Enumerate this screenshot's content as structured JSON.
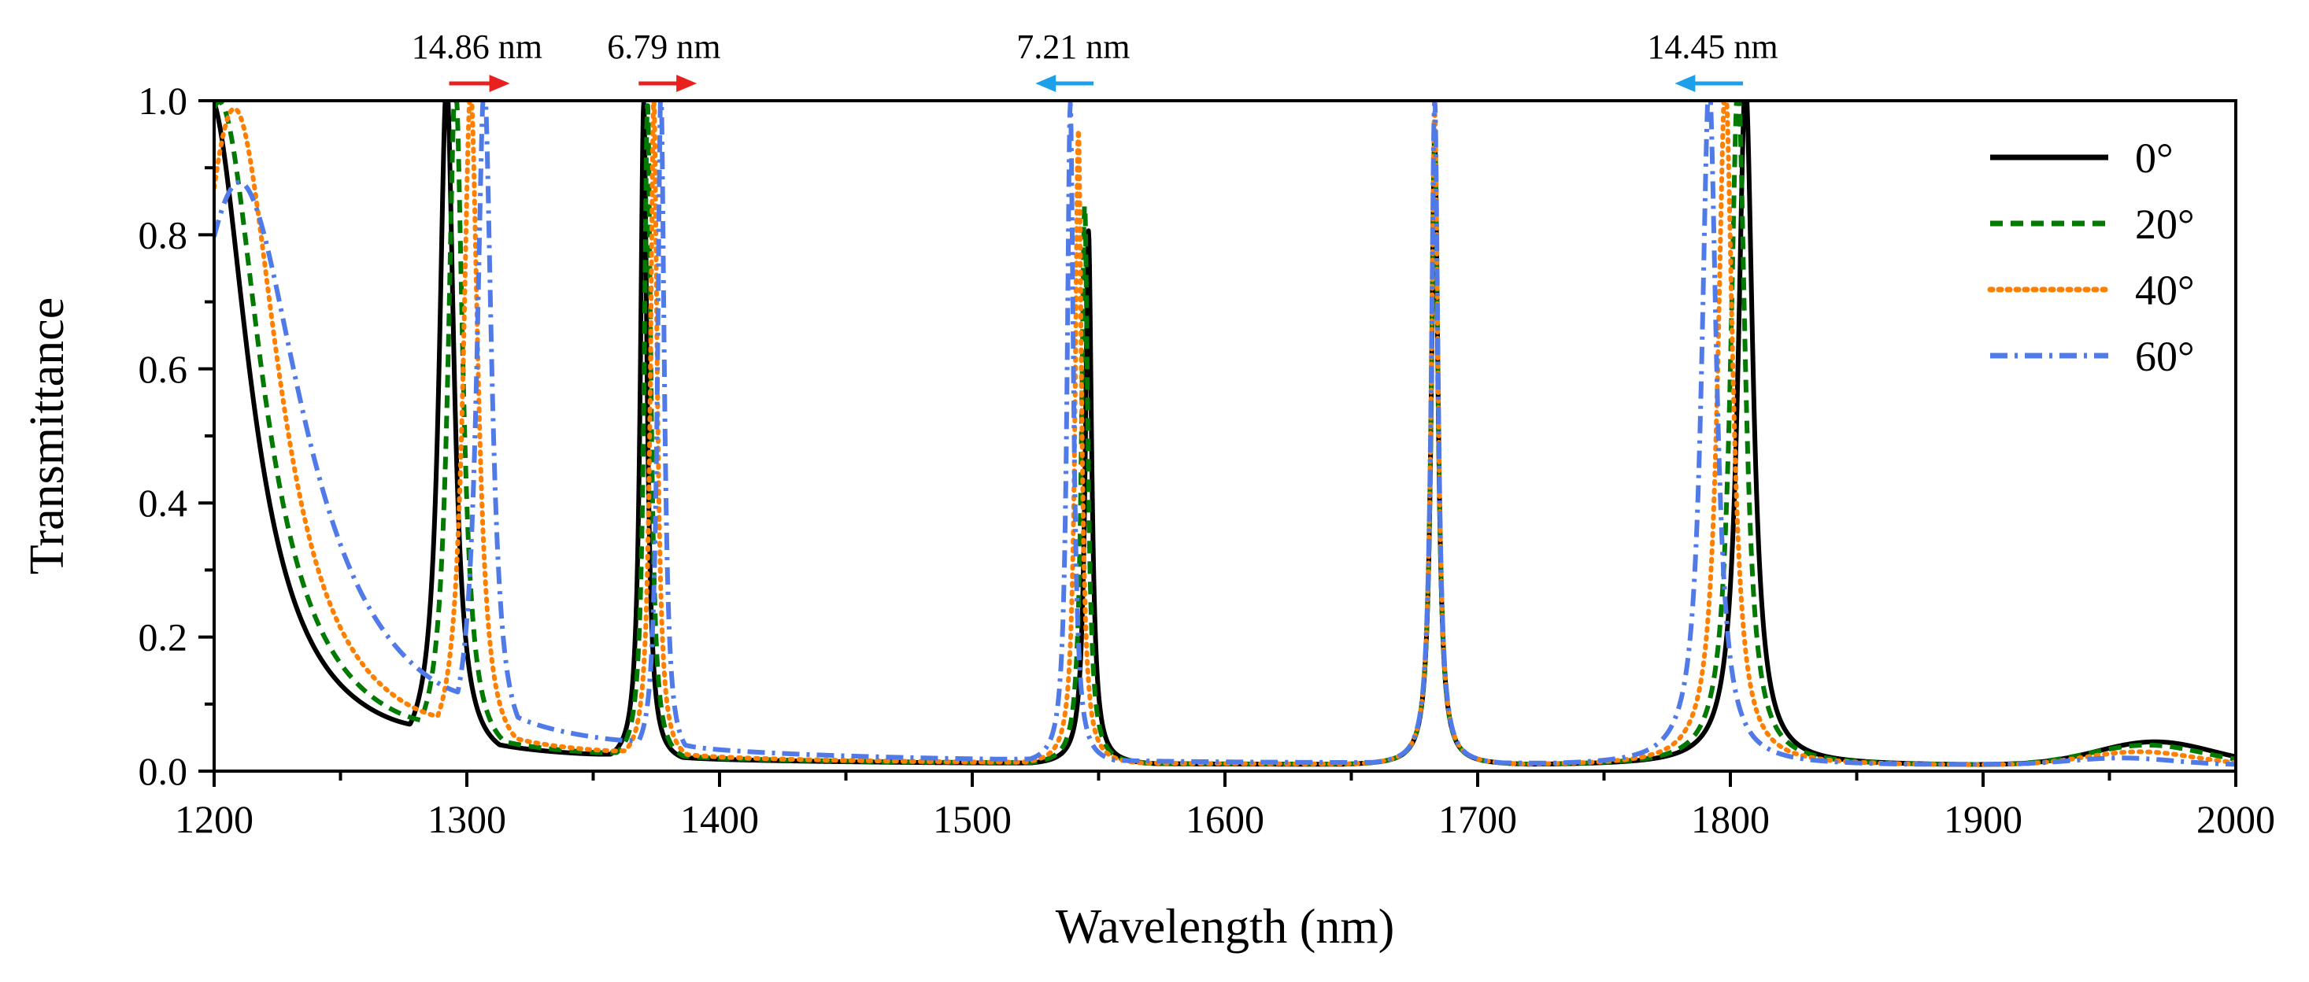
{
  "chart_data": {
    "type": "line",
    "title": "",
    "xlabel": "Wavelength (nm)",
    "ylabel": "Transmittance",
    "xlim": [
      1200,
      2000
    ],
    "ylim": [
      0,
      1.0
    ],
    "x_major_ticks": [
      1200,
      1300,
      1400,
      1500,
      1600,
      1700,
      1800,
      1900,
      2000
    ],
    "x_tick_labels": [
      "1200",
      "1300",
      "1400",
      "1500",
      "1600",
      "1700",
      "1800",
      "1900",
      "2000"
    ],
    "x_minor_ticks": [
      1250,
      1350,
      1450,
      1550,
      1650,
      1750,
      1850,
      1950
    ],
    "y_major_ticks": [
      0,
      0.2,
      0.4,
      0.6,
      0.8,
      1.0
    ],
    "y_tick_labels": [
      "0.0",
      "0.2",
      "0.4",
      "0.6",
      "0.8",
      "1.0"
    ],
    "y_minor_ticks": [
      0.1,
      0.3,
      0.5,
      0.7,
      0.9
    ],
    "grid": false,
    "legend_position": "top-right",
    "series": [
      {
        "name": "0°",
        "color": "#000000",
        "dash": "solid",
        "edge_peak": {
          "center": 1198,
          "width": 8,
          "height": 1.0
        },
        "peaks": [
          {
            "center": 1292.0,
            "width": 7.0,
            "height": 1.0
          },
          {
            "center": 1370.0,
            "width": 3.2,
            "height": 0.97
          },
          {
            "center": 1546.0,
            "width": 3.0,
            "height": 0.78
          },
          {
            "center": 1683.0,
            "width": 3.2,
            "height": 0.92
          },
          {
            "center": 1806.0,
            "width": 7.0,
            "height": 1.0
          }
        ],
        "bumps": [
          {
            "center": 1968,
            "width": 32,
            "height": 0.035
          }
        ],
        "baseline": 0.008
      },
      {
        "name": "20°",
        "color": "#007A00",
        "dash": "dashed",
        "edge_peak": {
          "center": 1202,
          "width": 8.5,
          "height": 0.99
        },
        "peaks": [
          {
            "center": 1295.5,
            "width": 7.0,
            "height": 1.0
          },
          {
            "center": 1371.5,
            "width": 3.2,
            "height": 0.97
          },
          {
            "center": 1544.5,
            "width": 3.0,
            "height": 0.82
          },
          {
            "center": 1683.0,
            "width": 3.2,
            "height": 0.93
          },
          {
            "center": 1803.0,
            "width": 7.0,
            "height": 1.0
          }
        ],
        "bumps": [
          {
            "center": 1965,
            "width": 32,
            "height": 0.03
          }
        ],
        "baseline": 0.008
      },
      {
        "name": "40°",
        "color": "#FF8000",
        "dash": "dotted",
        "edge_peak": {
          "center": 1208,
          "width": 9,
          "height": 0.98
        },
        "peaks": [
          {
            "center": 1301.5,
            "width": 7.0,
            "height": 0.99
          },
          {
            "center": 1374.0,
            "width": 3.2,
            "height": 0.98
          },
          {
            "center": 1542.0,
            "width": 3.0,
            "height": 0.93
          },
          {
            "center": 1683.0,
            "width": 3.2,
            "height": 0.96
          },
          {
            "center": 1798.0,
            "width": 7.0,
            "height": 1.0
          }
        ],
        "bumps": [
          {
            "center": 1962,
            "width": 30,
            "height": 0.02
          }
        ],
        "baseline": 0.008
      },
      {
        "name": "60°",
        "color": "#4F7AE8",
        "dash": "dashdot",
        "edge_peak": {
          "center": 1210,
          "width": 13,
          "height": 0.87
        },
        "peaks": [
          {
            "center": 1306.9,
            "width": 7.0,
            "height": 1.0
          },
          {
            "center": 1376.8,
            "width": 3.2,
            "height": 0.99
          },
          {
            "center": 1538.8,
            "width": 3.0,
            "height": 0.97
          },
          {
            "center": 1683.0,
            "width": 3.2,
            "height": 0.98
          },
          {
            "center": 1791.6,
            "width": 7.0,
            "height": 1.0
          }
        ],
        "bumps": [
          {
            "center": 1955,
            "width": 28,
            "height": 0.01
          }
        ],
        "baseline": 0.008
      }
    ],
    "annotations": [
      {
        "text": "14.86 nm",
        "label_x": 1304,
        "arrow_from": 1293,
        "arrow_to": 1317,
        "direction": "right",
        "color": "#E8201E"
      },
      {
        "text": "6.79 nm",
        "label_x": 1378,
        "arrow_from": 1368,
        "arrow_to": 1391,
        "direction": "right",
        "color": "#E8201E"
      },
      {
        "text": "7.21 nm",
        "label_x": 1540,
        "arrow_from": 1548,
        "arrow_to": 1525,
        "direction": "left",
        "color": "#1E9FEA"
      },
      {
        "text": "14.45 nm",
        "label_x": 1793,
        "arrow_from": 1805,
        "arrow_to": 1778,
        "direction": "left",
        "color": "#1E9FEA"
      }
    ]
  }
}
